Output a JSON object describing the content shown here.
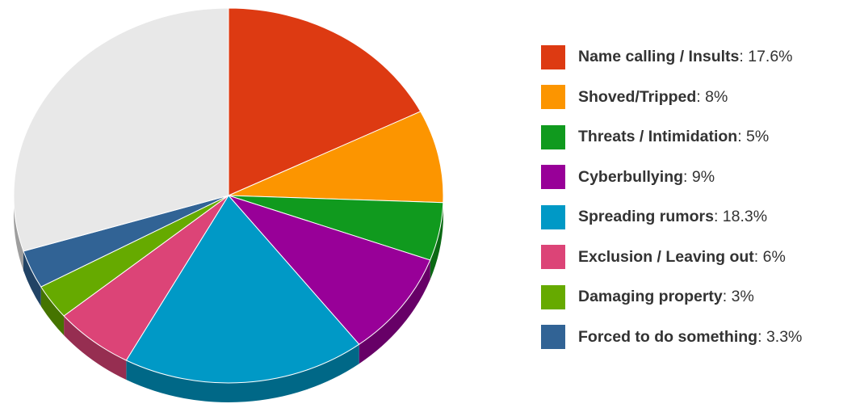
{
  "chart_data": {
    "type": "pie",
    "title": "",
    "legend_position": "right",
    "slices": [
      {
        "label": "Name calling / Insults",
        "value": 17.6,
        "value_label": "17.6%",
        "color": "#dd3a12"
      },
      {
        "label": "Shoved/Tripped",
        "value": 8,
        "value_label": "8%",
        "color": "#fc9500"
      },
      {
        "label": "Threats / Intimidation",
        "value": 5,
        "value_label": "5%",
        "color": "#109a1e"
      },
      {
        "label": "Cyberbullying",
        "value": 9,
        "value_label": "9%",
        "color": "#980098"
      },
      {
        "label": "Spreading rumors",
        "value": 18.3,
        "value_label": "18.3%",
        "color": "#0099c6"
      },
      {
        "label": "Exclusion / Leaving out",
        "value": 6,
        "value_label": "6%",
        "color": "#dc4477"
      },
      {
        "label": "Damaging property",
        "value": 3,
        "value_label": "3%",
        "color": "#66aa00"
      },
      {
        "label": "Forced to do something",
        "value": 3.3,
        "value_label": "3.3%",
        "color": "#316395"
      }
    ],
    "remainder_color": "#e8e8e8"
  },
  "legend": {
    "separator": ": "
  }
}
